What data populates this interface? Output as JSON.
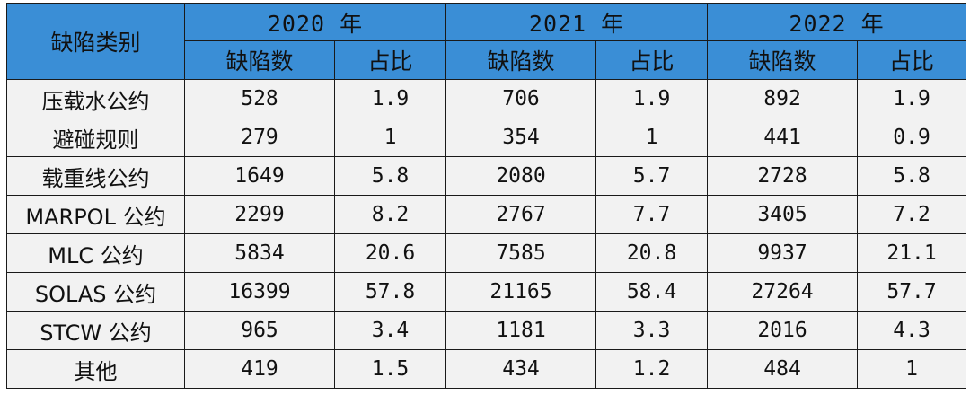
{
  "header": {
    "category_label": "缺陷类别",
    "years": [
      "2020 年",
      "2021 年",
      "2022 年"
    ],
    "sub_count": "缺陷数",
    "sub_ratio": "占比"
  },
  "rows": [
    {
      "category": "压载水公约",
      "v2020": "528",
      "p2020": "1.9",
      "v2021": "706",
      "p2021": "1.9",
      "v2022": "892",
      "p2022": "1.9"
    },
    {
      "category": "避碰规则",
      "v2020": "279",
      "p2020": "1",
      "v2021": "354",
      "p2021": "1",
      "v2022": "441",
      "p2022": "0.9"
    },
    {
      "category": "载重线公约",
      "v2020": "1649",
      "p2020": "5.8",
      "v2021": "2080",
      "p2021": "5.7",
      "v2022": "2728",
      "p2022": "5.8"
    },
    {
      "category": "MARPOL 公约",
      "v2020": "2299",
      "p2020": "8.2",
      "v2021": "2767",
      "p2021": "7.7",
      "v2022": "3405",
      "p2022": "7.2"
    },
    {
      "category": "MLC 公约",
      "v2020": "5834",
      "p2020": "20.6",
      "v2021": "7585",
      "p2021": "20.8",
      "v2022": "9937",
      "p2022": "21.1"
    },
    {
      "category": "SOLAS 公约",
      "v2020": "16399",
      "p2020": "57.8",
      "v2021": "21165",
      "p2021": "58.4",
      "v2022": "27264",
      "p2022": "57.7"
    },
    {
      "category": "STCW 公约",
      "v2020": "965",
      "p2020": "3.4",
      "v2021": "1181",
      "p2021": "3.3",
      "v2022": "2016",
      "p2022": "4.3"
    },
    {
      "category": "其他",
      "v2020": "419",
      "p2020": "1.5",
      "v2021": "434",
      "p2021": "1.2",
      "v2022": "484",
      "p2022": "1"
    }
  ]
}
